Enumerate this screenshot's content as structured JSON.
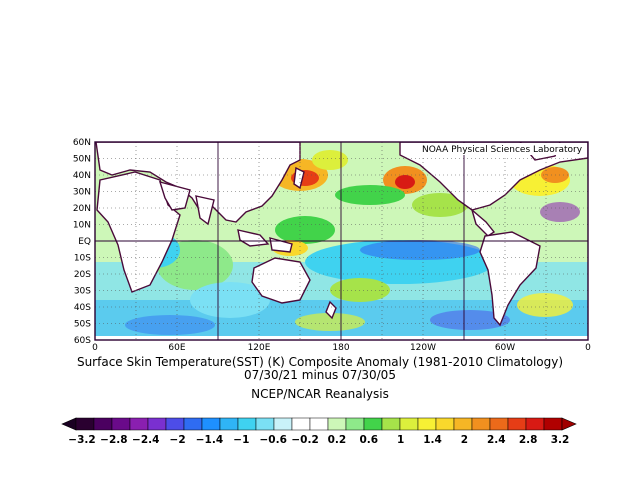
{
  "map": {
    "credit": "NOAA Physical Sciences Laboratory",
    "lat_labels": [
      "60N",
      "50N",
      "40N",
      "30N",
      "20N",
      "10N",
      "EQ",
      "10S",
      "20S",
      "30S",
      "40S",
      "50S",
      "60S"
    ],
    "lon_labels": [
      "0",
      "60E",
      "120E",
      "180",
      "120W",
      "60W",
      "0"
    ]
  },
  "caption": {
    "line1": "Surface Skin Temperature(SST) (K) Composite Anomaly (1981-2010 Climatology)",
    "line2": "07/30/21 minus 07/30/05",
    "line3": "NCEP/NCAR Reanalysis"
  },
  "colorbar": {
    "labels": [
      "−3.2",
      "−2.8",
      "−2.4",
      "−2",
      "−1.4",
      "−1",
      "−0.6",
      "−0.2",
      "0.2",
      "0.6",
      "1",
      "1.4",
      "2",
      "2.4",
      "2.8",
      "3.2"
    ],
    "colors": [
      "#2a0030",
      "#4b0060",
      "#6a0a8a",
      "#8a1fb0",
      "#7a30d0",
      "#4d4de8",
      "#2f6cf2",
      "#1e90ff",
      "#2fb4f6",
      "#3fd2f0",
      "#7be0f4",
      "#c9f2f9",
      "#ffffff",
      "#ffffff",
      "#cdf7b8",
      "#8ee98a",
      "#42d34a",
      "#a6e34a",
      "#dcef3c",
      "#f7f034",
      "#f9d82c",
      "#f6b625",
      "#f1901f",
      "#ec6a1a",
      "#e63d16",
      "#d81a14",
      "#b00000"
    ]
  }
}
